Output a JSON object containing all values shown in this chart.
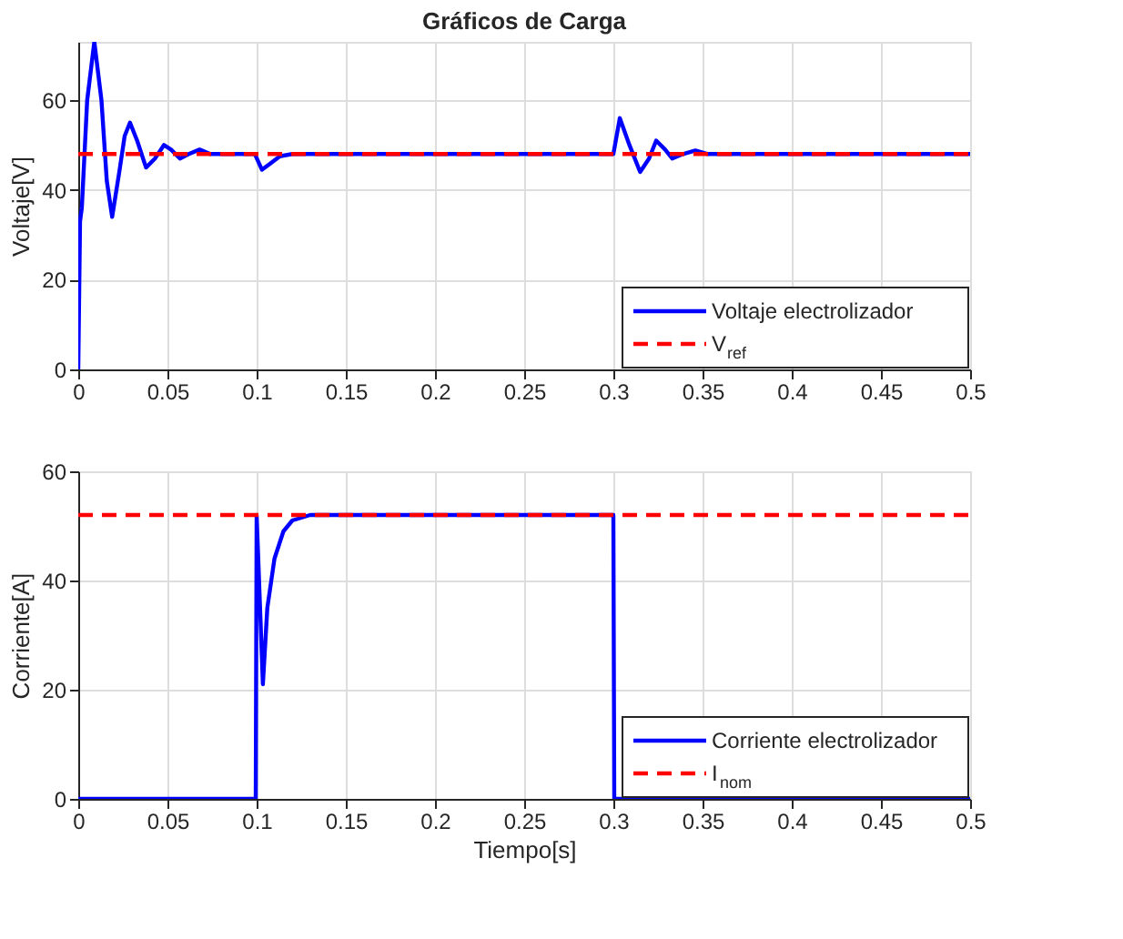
{
  "chart_data": [
    {
      "type": "line",
      "title": "Gráficos de Carga",
      "ylabel": "Voltaje[V]",
      "xlim": [
        0,
        0.5
      ],
      "xticks": [
        0,
        0.05,
        0.1,
        0.15,
        0.2,
        0.25,
        0.3,
        0.35,
        0.4,
        0.45,
        0.5
      ],
      "ylim": [
        0,
        73
      ],
      "yticks": [
        0,
        20,
        40,
        60
      ],
      "grid": true,
      "legend": "bottom right",
      "series": [
        {
          "name": "Voltaje electrolizador",
          "color": "#0000ff",
          "line_style": "solid",
          "x": [
            0,
            0.001,
            0.002,
            0.005,
            0.009,
            0.013,
            0.016,
            0.019,
            0.023,
            0.026,
            0.029,
            0.033,
            0.038,
            0.043,
            0.048,
            0.052,
            0.057,
            0.062,
            0.068,
            0.074,
            0.08,
            0.099,
            0.103,
            0.108,
            0.113,
            0.12,
            0.3,
            0.3036,
            0.309,
            0.315,
            0.32,
            0.324,
            0.329,
            0.333,
            0.339,
            0.346,
            0.353,
            0.36,
            0.5
          ],
          "values": [
            0,
            33,
            36,
            60,
            73,
            60,
            42,
            34,
            44,
            52,
            55,
            51,
            45,
            47,
            50,
            49,
            47,
            48,
            49,
            48,
            48,
            48,
            44.5,
            46,
            47.5,
            48,
            48,
            56,
            50,
            44,
            47,
            51,
            49,
            47,
            48,
            48.8,
            48,
            48,
            48
          ]
        },
        {
          "name": "V$_{ref}$",
          "color": "#ff0000",
          "line_style": "dashed",
          "x": [
            0,
            0.5
          ],
          "values": [
            48,
            48
          ]
        }
      ]
    },
    {
      "type": "line",
      "xlabel": "Tiempo[s]",
      "ylabel": "Corriente[A]",
      "xlim": [
        0,
        0.5
      ],
      "xticks": [
        0,
        0.05,
        0.1,
        0.15,
        0.2,
        0.25,
        0.3,
        0.35,
        0.4,
        0.45,
        0.5
      ],
      "ylim": [
        0,
        60
      ],
      "yticks": [
        0,
        20,
        40,
        60
      ],
      "grid": true,
      "legend": "bottom right",
      "series": [
        {
          "name": "Corriente electrolizador",
          "color": "#0000ff",
          "line_style": "solid",
          "x": [
            0,
            0.0995,
            0.1,
            0.1035,
            0.106,
            0.11,
            0.115,
            0.12,
            0.13,
            0.3,
            0.3005,
            0.5
          ],
          "values": [
            0,
            0,
            52,
            21,
            35,
            44,
            49,
            51,
            52,
            52,
            0,
            0
          ]
        },
        {
          "name": "I$_{nom}$",
          "color": "#ff0000",
          "line_style": "dashed",
          "x": [
            0,
            0.5
          ],
          "values": [
            52,
            52
          ]
        }
      ]
    }
  ]
}
